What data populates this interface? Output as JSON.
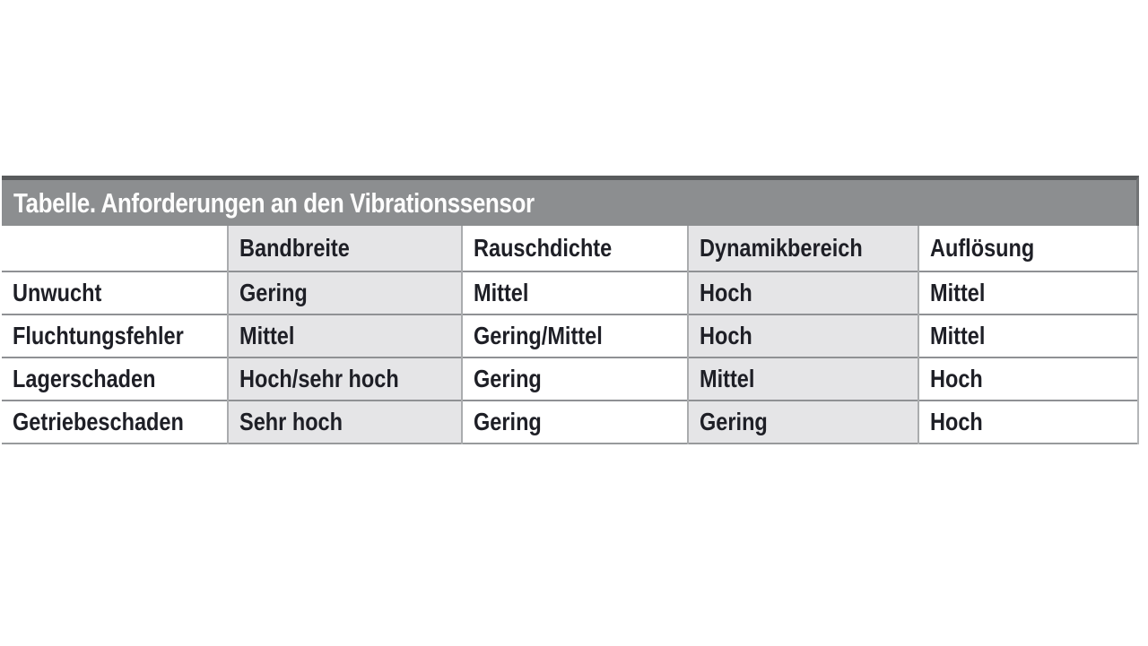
{
  "chart_data": {
    "type": "table",
    "title": "Tabelle. Anforderungen an den Vibrationssensor",
    "columns": [
      "",
      "Bandbreite",
      "Rauschdichte",
      "Dynamikbereich",
      "Auflösung"
    ],
    "rows": [
      [
        "Unwucht",
        "Gering",
        "Mittel",
        "Hoch",
        "Mittel"
      ],
      [
        "Fluchtungsfehler",
        "Mittel",
        "Gering/Mittel",
        "Hoch",
        "Mittel"
      ],
      [
        "Lagerschaden",
        "Hoch/sehr hoch",
        "Gering",
        "Mittel",
        "Hoch"
      ],
      [
        "Getriebeschaden",
        "Sehr hoch",
        "Gering",
        "Gering",
        "Hoch"
      ]
    ],
    "layout_hints": {
      "shaded_columns": [
        "Bandbreite",
        "Dynamikbereich"
      ],
      "title_position": "top-bar"
    },
    "colors": {
      "title_bar_background": "#8c8e90",
      "title_bar_top_edge": "#595b5d",
      "title_text": "#fdfdfd",
      "shaded_column_background": "#e5e5e7",
      "grid_line": "#8f9194",
      "cell_text": "#1e1f26",
      "page_background": "#ffffff"
    }
  }
}
